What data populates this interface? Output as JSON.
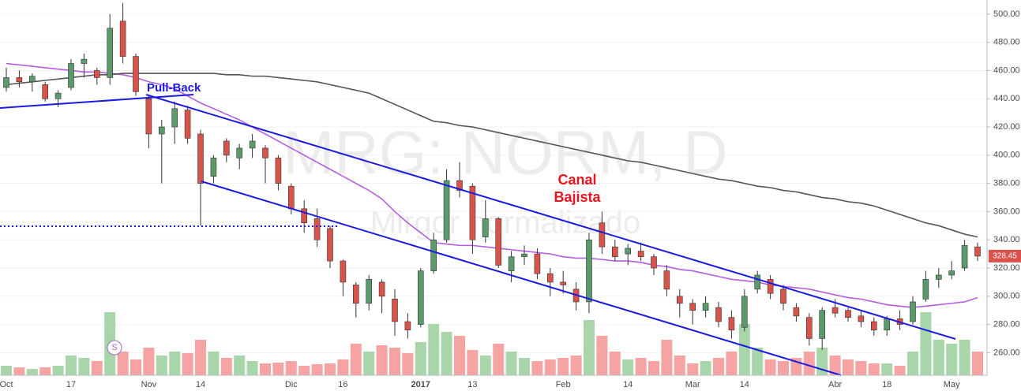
{
  "chart_data": {
    "type": "candlestick",
    "watermark": "MRG: NORM, D",
    "watermark_sub": "Mirgor normalizado",
    "annotations": {
      "pullback": "Pull-Back",
      "channel_1": "Canal",
      "channel_2": "Bajista",
      "marker": "S"
    },
    "categories": [
      "Oct",
      null,
      null,
      null,
      null,
      "17",
      null,
      null,
      null,
      null,
      null,
      "Nov",
      null,
      null,
      null,
      "14",
      null,
      null,
      null,
      null,
      null,
      null,
      "Dic",
      null,
      null,
      null,
      "16",
      null,
      null,
      null,
      null,
      null,
      "2017",
      null,
      null,
      null,
      "13",
      null,
      null,
      null,
      null,
      null,
      null,
      "Feb",
      null,
      null,
      null,
      null,
      "14",
      null,
      null,
      null,
      null,
      "Mar",
      null,
      null,
      null,
      "14",
      null,
      null,
      null,
      null,
      null,
      null,
      "Abr",
      null,
      null,
      null,
      "18",
      null,
      null,
      null,
      null,
      "May",
      null,
      null
    ],
    "open": [
      448,
      455,
      452,
      450,
      440,
      448,
      465,
      460,
      455,
      495,
      470,
      440,
      415,
      420,
      432,
      415,
      385,
      410,
      398,
      405,
      405,
      398,
      378,
      362,
      355,
      348,
      325,
      308,
      295,
      310,
      298,
      282,
      280,
      318,
      340,
      382,
      378,
      342,
      355,
      318,
      328,
      330,
      316,
      310,
      305,
      296,
      352,
      335,
      330,
      332,
      328,
      318,
      300,
      295,
      290,
      292,
      285,
      278,
      305,
      312,
      305,
      292,
      285,
      270,
      292,
      290,
      286,
      282,
      276,
      284,
      282,
      298,
      312,
      315,
      320,
      335
    ],
    "high": [
      462,
      460,
      458,
      452,
      446,
      468,
      472,
      462,
      500,
      508,
      472,
      442,
      425,
      438,
      435,
      418,
      400,
      412,
      408,
      415,
      407,
      400,
      380,
      368,
      362,
      350,
      326,
      310,
      315,
      312,
      305,
      288,
      320,
      345,
      390,
      395,
      380,
      368,
      356,
      332,
      336,
      334,
      320,
      318,
      310,
      345,
      360,
      340,
      337,
      338,
      330,
      322,
      305,
      298,
      300,
      296,
      290,
      305,
      318,
      315,
      308,
      295,
      288,
      292,
      298,
      292,
      290,
      285,
      286,
      290,
      300,
      318,
      320,
      325,
      340,
      338
    ],
    "low": [
      445,
      448,
      445,
      438,
      434,
      446,
      455,
      450,
      450,
      465,
      442,
      405,
      380,
      408,
      408,
      350,
      380,
      395,
      390,
      398,
      380,
      375,
      358,
      345,
      335,
      320,
      300,
      285,
      290,
      288,
      272,
      270,
      278,
      316,
      338,
      370,
      330,
      338,
      320,
      310,
      322,
      312,
      300,
      302,
      290,
      288,
      330,
      325,
      322,
      325,
      315,
      300,
      285,
      280,
      285,
      278,
      270,
      275,
      302,
      298,
      290,
      282,
      265,
      262,
      285,
      282,
      278,
      272,
      272,
      276,
      280,
      296,
      306,
      312,
      318,
      325
    ],
    "close": [
      455,
      452,
      456,
      440,
      444,
      465,
      468,
      455,
      490,
      470,
      445,
      415,
      420,
      433,
      412,
      380,
      398,
      400,
      405,
      410,
      398,
      380,
      362,
      352,
      340,
      325,
      310,
      295,
      312,
      300,
      282,
      276,
      318,
      340,
      382,
      375,
      340,
      355,
      322,
      328,
      330,
      316,
      310,
      308,
      296,
      340,
      335,
      328,
      334,
      328,
      320,
      305,
      295,
      290,
      295,
      282,
      276,
      300,
      315,
      302,
      295,
      286,
      270,
      290,
      288,
      285,
      282,
      276,
      284,
      280,
      296,
      312,
      315,
      318,
      336,
      328.45
    ],
    "volume": [
      12,
      10,
      8,
      10,
      12,
      25,
      22,
      18,
      80,
      30,
      20,
      35,
      25,
      30,
      28,
      45,
      30,
      22,
      25,
      18,
      15,
      16,
      18,
      12,
      14,
      15,
      20,
      40,
      30,
      38,
      35,
      28,
      42,
      65,
      55,
      50,
      32,
      25,
      40,
      30,
      22,
      18,
      20,
      22,
      25,
      70,
      50,
      30,
      20,
      22,
      18,
      45,
      25,
      15,
      18,
      22,
      30,
      65,
      35,
      20,
      18,
      22,
      30,
      35,
      25,
      20,
      18,
      15,
      15,
      12,
      30,
      80,
      45,
      40,
      45,
      30
    ],
    "volume_lim": [
      0,
      100
    ],
    "up_color": "#5b9a6b",
    "down_color": "#d9534a",
    "up_volume_color": "#a8d5aa",
    "down_volume_color": "#f5a3a3",
    "moving_averages": [
      {
        "color": "#b45ee0",
        "values": [
          465,
          464,
          463,
          462,
          461,
          460,
          459,
          459,
          458,
          457,
          455,
          452,
          450,
          447,
          442,
          437,
          433,
          429,
          425,
          420,
          415,
          410,
          405,
          400,
          395,
          390,
          385,
          380,
          375,
          369,
          360,
          352,
          345,
          338,
          337,
          336,
          336,
          335,
          334,
          333,
          332,
          331,
          330,
          328,
          327,
          327,
          326,
          325,
          325,
          324,
          322,
          321,
          319,
          318,
          316,
          314,
          312,
          311,
          310,
          308,
          307,
          306,
          305,
          303,
          301,
          299,
          298,
          296,
          294,
          293,
          292,
          293,
          294,
          295,
          296,
          299
        ]
      },
      {
        "color": "#555555",
        "values": [
          450,
          451,
          452,
          453,
          454,
          455,
          456,
          457,
          457,
          458,
          458,
          458,
          458,
          458,
          458,
          458,
          458,
          457,
          457,
          456,
          456,
          455,
          454,
          453,
          452,
          450,
          448,
          446,
          444,
          440,
          436,
          432,
          428,
          424,
          423,
          421,
          420,
          418,
          416,
          414,
          412,
          410,
          408,
          406,
          404,
          402,
          400,
          398,
          396,
          395,
          393,
          391,
          389,
          387,
          385,
          383,
          382,
          380,
          378,
          377,
          375,
          374,
          372,
          370,
          369,
          367,
          366,
          364,
          361,
          358,
          355,
          352,
          350,
          347,
          344,
          342
        ]
      }
    ],
    "ylim": [
      244,
      510
    ],
    "yticks": [
      {
        "value": 260,
        "label": "260.00"
      },
      {
        "value": 280,
        "label": "280.00"
      },
      {
        "value": 300,
        "label": "300.00"
      },
      {
        "value": 320,
        "label": "320.00"
      },
      {
        "value": 340,
        "label": "340.00"
      },
      {
        "value": 360,
        "label": "360.00"
      },
      {
        "value": 380,
        "label": "380.00"
      },
      {
        "value": 400,
        "label": "400.00"
      },
      {
        "value": 420,
        "label": "420.00"
      },
      {
        "value": 440,
        "label": "440.00"
      },
      {
        "value": 460,
        "label": "460.00"
      },
      {
        "value": 480,
        "label": "480.00"
      },
      {
        "value": 500,
        "label": "500.00"
      }
    ],
    "grid": true
  }
}
